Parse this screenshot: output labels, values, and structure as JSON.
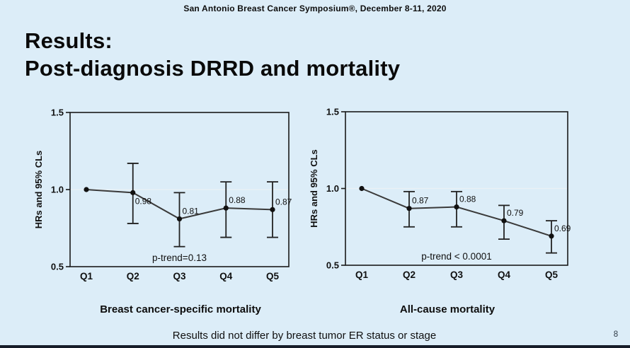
{
  "header": {
    "conference_line": "San Antonio Breast Cancer Symposium®, December 8-11, 2020"
  },
  "title": {
    "line1": "Results:",
    "line2": "Post-diagnosis DRRD and mortality"
  },
  "footnote": "Results did not differ by breast tumor ER status or stage",
  "page_number": "8",
  "colors": {
    "background": "#dcedf8",
    "text": "#0d0d0d",
    "plot_border": "#1a1a1a",
    "series_line": "#3a3a3a",
    "marker": "#111111",
    "error_bar": "#222222",
    "reference_line": "#eaf1f5",
    "bottom_strip": "#161d29"
  },
  "chart_data": [
    {
      "type": "line",
      "title": "Breast cancer-specific mortality",
      "ylabel": "HRs and 95% CLs",
      "categories": [
        "Q1",
        "Q2",
        "Q3",
        "Q4",
        "Q5"
      ],
      "ylim": [
        0.5,
        1.5
      ],
      "yticks": [
        "0.5",
        "1.0",
        "1.5"
      ],
      "grid": false,
      "reference_line": 1.0,
      "annotation": "p-trend=0.13",
      "series": [
        {
          "name": "Hazard ratio",
          "values": [
            1.0,
            0.98,
            0.81,
            0.88,
            0.87
          ]
        }
      ],
      "points": [
        {
          "category": "Q1",
          "value": 1.0,
          "label": ""
        },
        {
          "category": "Q2",
          "value": 0.98,
          "ci_low": 0.78,
          "ci_high": 1.17,
          "label": "0.98",
          "label_pos": "below"
        },
        {
          "category": "Q3",
          "value": 0.81,
          "ci_low": 0.63,
          "ci_high": 0.98,
          "label": "0.81",
          "label_pos": "above"
        },
        {
          "category": "Q4",
          "value": 0.88,
          "ci_low": 0.69,
          "ci_high": 1.05,
          "label": "0.88",
          "label_pos": "above"
        },
        {
          "category": "Q5",
          "value": 0.87,
          "ci_low": 0.69,
          "ci_high": 1.05,
          "label": "0.87",
          "label_pos": "above"
        }
      ]
    },
    {
      "type": "line",
      "title": "All-cause mortality",
      "ylabel": "HRs and 95% CLs",
      "categories": [
        "Q1",
        "Q2",
        "Q3",
        "Q4",
        "Q5"
      ],
      "ylim": [
        0.5,
        1.5
      ],
      "yticks": [
        "0.5",
        "1.0",
        "1.5"
      ],
      "grid": false,
      "reference_line": 1.0,
      "annotation": "p-trend < 0.0001",
      "series": [
        {
          "name": "Hazard ratio",
          "values": [
            1.0,
            0.87,
            0.88,
            0.79,
            0.69
          ]
        }
      ],
      "points": [
        {
          "category": "Q1",
          "value": 1.0,
          "label": ""
        },
        {
          "category": "Q2",
          "value": 0.87,
          "ci_low": 0.75,
          "ci_high": 0.98,
          "label": "0.87",
          "label_pos": "above"
        },
        {
          "category": "Q3",
          "value": 0.88,
          "ci_low": 0.75,
          "ci_high": 0.98,
          "label": "0.88",
          "label_pos": "above"
        },
        {
          "category": "Q4",
          "value": 0.79,
          "ci_low": 0.67,
          "ci_high": 0.89,
          "label": "0.79",
          "label_pos": "above"
        },
        {
          "category": "Q5",
          "value": 0.69,
          "ci_low": 0.58,
          "ci_high": 0.79,
          "label": "0.69",
          "label_pos": "above"
        }
      ]
    }
  ]
}
